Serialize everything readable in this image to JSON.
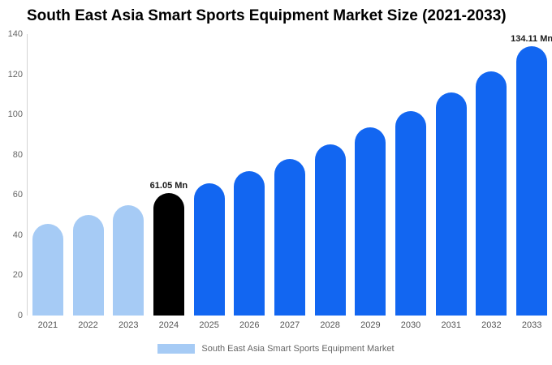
{
  "chart_data": {
    "type": "bar",
    "title": "South East Asia Smart Sports Equipment Market Size (2021-2033)",
    "unit": "Mn",
    "categories": [
      "2021",
      "2022",
      "2023",
      "2024",
      "2025",
      "2026",
      "2027",
      "2028",
      "2029",
      "2030",
      "2031",
      "2032",
      "2033"
    ],
    "values": [
      45.5,
      50,
      55,
      61.05,
      65.8,
      71.8,
      78,
      85,
      93.5,
      101.5,
      111,
      121.5,
      134.11
    ],
    "bar_colors": [
      "#a6cbf5",
      "#a6cbf5",
      "#a6cbf5",
      "#000000",
      "#1266f1",
      "#1266f1",
      "#1266f1",
      "#1266f1",
      "#1266f1",
      "#1266f1",
      "#1266f1",
      "#1266f1",
      "#1266f1"
    ],
    "annotations": [
      {
        "index": 3,
        "text": "61.05 Mn"
      },
      {
        "index": 12,
        "text": "134.11 Mn"
      }
    ],
    "xlabel": "",
    "ylabel": "",
    "ylim": [
      0,
      140
    ],
    "yticks": [
      0,
      20,
      40,
      60,
      80,
      100,
      120,
      140
    ],
    "grid": false,
    "legend": {
      "label": "South East Asia Smart Sports Equipment Market",
      "color": "#a6cbf5",
      "position": "bottom"
    }
  }
}
